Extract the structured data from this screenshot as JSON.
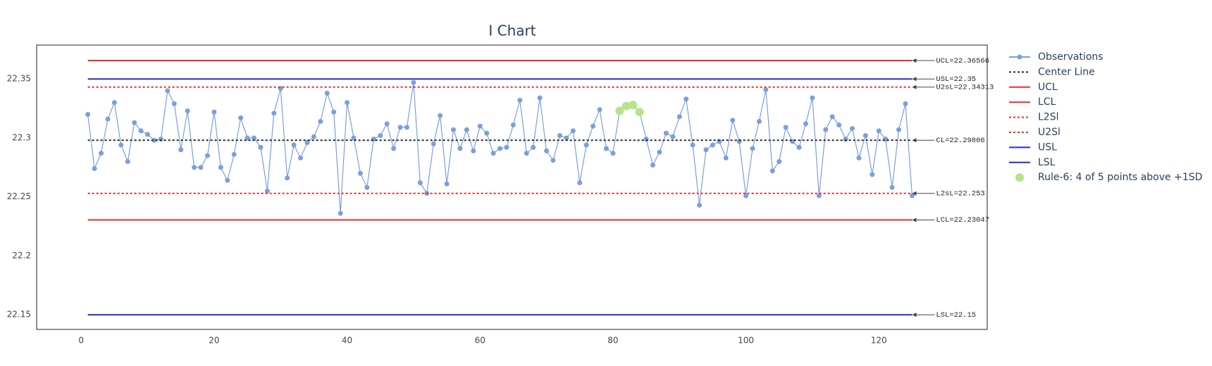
{
  "chart_data": {
    "type": "control",
    "title": "I Chart",
    "xlim": [
      -6.7,
      136.3
    ],
    "xticks": [
      0,
      20,
      40,
      60,
      80,
      100,
      120
    ],
    "ylim": [
      22.1376,
      22.3788
    ],
    "yticks": [
      22.15,
      22.2,
      22.25,
      22.3,
      22.35
    ],
    "grid": false,
    "legend": "outside-right",
    "series": [
      {
        "name": "Observations",
        "mode": "lines+markers",
        "dash": "solid",
        "color": "#7a9fe0",
        "x": [
          1,
          2,
          3,
          4,
          5,
          6,
          7,
          8,
          9,
          10,
          11,
          12,
          13,
          14,
          15,
          16,
          17,
          18,
          19,
          20,
          21,
          22,
          23,
          24,
          25,
          26,
          27,
          28,
          29,
          30,
          31,
          32,
          33,
          34,
          35,
          36,
          37,
          38,
          39,
          40,
          41,
          42,
          43,
          44,
          45,
          46,
          47,
          48,
          49,
          50,
          51,
          52,
          53,
          54,
          55,
          56,
          57,
          58,
          59,
          60,
          61,
          62,
          63,
          64,
          65,
          66,
          67,
          68,
          69,
          70,
          71,
          72,
          73,
          74,
          75,
          76,
          77,
          78,
          79,
          80,
          81,
          82,
          83,
          84,
          85,
          86,
          87,
          88,
          89,
          90,
          91,
          92,
          93,
          94,
          95,
          96,
          97,
          98,
          99,
          100,
          101,
          102,
          103,
          104,
          105,
          106,
          107,
          108,
          109,
          110,
          111,
          112,
          113,
          114,
          115,
          116,
          117,
          118,
          119,
          120,
          121,
          122,
          123,
          124,
          125
        ],
        "values": [
          22.32,
          22.274,
          22.287,
          22.316,
          22.33,
          22.294,
          22.28,
          22.313,
          22.306,
          22.303,
          22.298,
          22.299,
          22.34,
          22.329,
          22.29,
          22.323,
          22.275,
          22.275,
          22.285,
          22.322,
          22.275,
          22.264,
          22.286,
          22.317,
          22.3,
          22.3,
          22.292,
          22.255,
          22.321,
          22.342,
          22.266,
          22.294,
          22.283,
          22.296,
          22.301,
          22.314,
          22.338,
          22.322,
          22.236,
          22.33,
          22.3,
          22.27,
          22.258,
          22.299,
          22.302,
          22.312,
          22.291,
          22.309,
          22.309,
          22.347,
          22.262,
          22.253,
          22.295,
          22.319,
          22.261,
          22.307,
          22.291,
          22.307,
          22.289,
          22.31,
          22.304,
          22.287,
          22.291,
          22.292,
          22.311,
          22.332,
          22.287,
          22.292,
          22.334,
          22.289,
          22.281,
          22.302,
          22.3,
          22.306,
          22.262,
          22.294,
          22.31,
          22.324,
          22.291,
          22.287,
          22.323,
          22.327,
          22.328,
          22.322,
          22.299,
          22.277,
          22.288,
          22.304,
          22.301,
          22.318,
          22.333,
          22.294,
          22.243,
          22.29,
          22.294,
          22.297,
          22.283,
          22.315,
          22.297,
          22.251,
          22.291,
          22.314,
          22.341,
          22.272,
          22.28,
          22.309,
          22.297,
          22.292,
          22.312,
          22.334,
          22.251,
          22.307,
          22.318,
          22.311,
          22.299,
          22.308,
          22.283,
          22.302,
          22.269,
          22.306,
          22.299,
          22.258,
          22.307,
          22.329,
          22.251
        ]
      },
      {
        "name": "Center Line",
        "mode": "lines",
        "dash": "dot",
        "color": "#222222",
        "x": [
          1,
          125
        ],
        "values": [
          22.29806,
          22.29806
        ],
        "label": "CL=22.29806"
      },
      {
        "name": "UCL",
        "mode": "lines",
        "dash": "solid",
        "color": "#ee2a2a",
        "x": [
          1,
          125
        ],
        "values": [
          22.36566,
          22.36566
        ],
        "label": "UCL=22.36566"
      },
      {
        "name": "LCL",
        "mode": "lines",
        "dash": "solid",
        "color": "#ee2a2a",
        "x": [
          1,
          125
        ],
        "values": [
          22.23047,
          22.23047
        ],
        "label": "LCL=22.23047"
      },
      {
        "name": "L2Sl",
        "mode": "lines",
        "dash": "dot",
        "color": "#ee2a2a",
        "x": [
          1,
          125
        ],
        "values": [
          22.253,
          22.253
        ],
        "label": "L2sL=22.253"
      },
      {
        "name": "U2Sl",
        "mode": "lines",
        "dash": "dot",
        "color": "#ee2a2a",
        "x": [
          1,
          125
        ],
        "values": [
          22.34313,
          22.34313
        ],
        "label": "U2sL=22.34313"
      },
      {
        "name": "USL",
        "mode": "lines",
        "dash": "solid",
        "color": "#2a2acc",
        "x": [
          1,
          125
        ],
        "values": [
          22.35,
          22.35
        ],
        "label": "USL=22.35"
      },
      {
        "name": "LSL",
        "mode": "lines",
        "dash": "solid",
        "color": "#2a2acc",
        "x": [
          1,
          125
        ],
        "values": [
          22.15,
          22.15
        ],
        "label": "LSL=22.15"
      },
      {
        "name": "Rule-6: 4 of 5 points above +1SD",
        "mode": "markers",
        "dash": "solid",
        "color": "#b5e48c",
        "x": [
          81,
          82,
          83,
          84
        ],
        "values": [
          22.323,
          22.327,
          22.328,
          22.322
        ]
      }
    ]
  }
}
